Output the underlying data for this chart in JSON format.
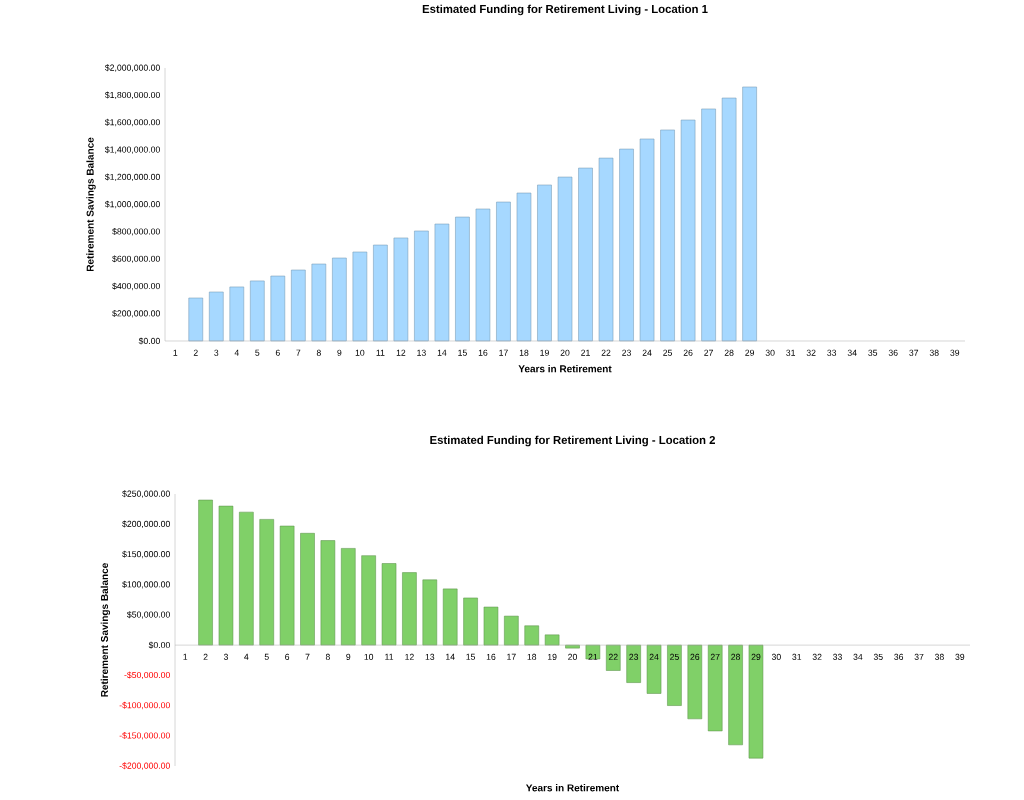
{
  "chart_data": [
    {
      "type": "bar",
      "title": "Estimated Funding for Retirement Living - Location 1",
      "xlabel": "Years in Retirement",
      "ylabel": "Retirement Savings Balance",
      "color": "#a6d8ff",
      "categories": [
        "1",
        "2",
        "3",
        "4",
        "5",
        "6",
        "7",
        "8",
        "9",
        "10",
        "11",
        "12",
        "13",
        "14",
        "15",
        "16",
        "17",
        "18",
        "19",
        "20",
        "21",
        "22",
        "23",
        "24",
        "25",
        "26",
        "27",
        "28",
        "29",
        "30",
        "31",
        "32",
        "33",
        "34",
        "35",
        "36",
        "37",
        "38",
        "39"
      ],
      "values": [
        null,
        315000,
        359000,
        396000,
        440000,
        476000,
        520000,
        564000,
        608000,
        652000,
        703000,
        755000,
        806000,
        857000,
        908000,
        967000,
        1018000,
        1084000,
        1143000,
        1201000,
        1267000,
        1340000,
        1406000,
        1480000,
        1546000,
        1619000,
        1700000,
        1780000,
        1861000,
        null,
        null,
        null,
        null,
        null,
        null,
        null,
        null,
        null,
        null
      ],
      "ylim": [
        0,
        2000000
      ],
      "yticks": [
        {
          "value": 0,
          "label": "$0.00"
        },
        {
          "value": 200000,
          "label": "$200,000.00"
        },
        {
          "value": 400000,
          "label": "$400,000.00"
        },
        {
          "value": 600000,
          "label": "$600,000.00"
        },
        {
          "value": 800000,
          "label": "$800,000.00"
        },
        {
          "value": 1000000,
          "label": "$1,000,000.00"
        },
        {
          "value": 1200000,
          "label": "$1,200,000.00"
        },
        {
          "value": 1400000,
          "label": "$1,400,000.00"
        },
        {
          "value": 1600000,
          "label": "$1,600,000.00"
        },
        {
          "value": 1800000,
          "label": "$1,800,000.00"
        },
        {
          "value": 2000000,
          "label": "$2,000,000.00"
        }
      ]
    },
    {
      "type": "bar",
      "title": "Estimated Funding for Retirement Living - Location 2",
      "xlabel": "Years in Retirement",
      "ylabel": "Retirement Savings Balance",
      "color": "#80d068",
      "categories": [
        "1",
        "2",
        "3",
        "4",
        "5",
        "6",
        "7",
        "8",
        "9",
        "10",
        "11",
        "12",
        "13",
        "14",
        "15",
        "16",
        "17",
        "18",
        "19",
        "20",
        "21",
        "22",
        "23",
        "24",
        "25",
        "26",
        "27",
        "28",
        "29",
        "30",
        "31",
        "32",
        "33",
        "34",
        "35",
        "36",
        "37",
        "38",
        "39"
      ],
      "values": [
        null,
        240000,
        230000,
        220000,
        208000,
        197000,
        185000,
        173000,
        160000,
        148000,
        135000,
        120000,
        108000,
        93000,
        78000,
        63000,
        48000,
        32000,
        17000,
        -5000,
        -23000,
        -42000,
        -62000,
        -80000,
        -100000,
        -122000,
        -142000,
        -165000,
        -187000,
        null,
        null,
        null,
        null,
        null,
        null,
        null,
        null,
        null,
        null
      ],
      "ylim": [
        -200000,
        250000
      ],
      "yticks": [
        {
          "value": -200000,
          "label": "-$200,000.00"
        },
        {
          "value": -150000,
          "label": "-$150,000.00"
        },
        {
          "value": -100000,
          "label": "-$100,000.00"
        },
        {
          "value": -50000,
          "label": "-$50,000.00"
        },
        {
          "value": 0,
          "label": "$0.00"
        },
        {
          "value": 50000,
          "label": "$50,000.00"
        },
        {
          "value": 100000,
          "label": "$100,000.00"
        },
        {
          "value": 150000,
          "label": "$150,000.00"
        },
        {
          "value": 200000,
          "label": "$200,000.00"
        },
        {
          "value": 250000,
          "label": "$250,000.00"
        }
      ]
    }
  ]
}
